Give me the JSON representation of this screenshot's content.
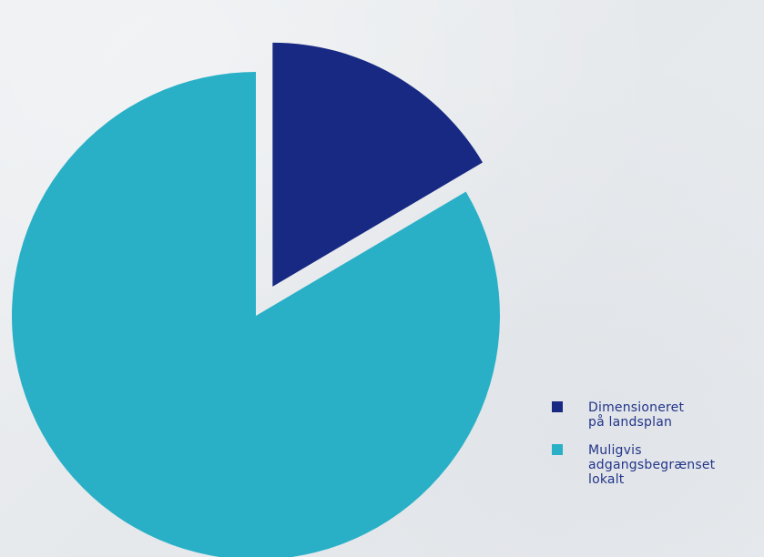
{
  "chart_data": {
    "type": "pie",
    "title": "",
    "start_angle_deg": 0,
    "direction": "clockwise",
    "slices": [
      {
        "label": "Dimensioneret\npå landsplan",
        "value": 16.5,
        "color": "#172983",
        "exploded": true
      },
      {
        "label": "Muligvis\nadgangsbegrænset\nlokalt",
        "value": 83.5,
        "color": "#29b0c7",
        "exploded": false
      }
    ],
    "legend_position": "bottom-right"
  }
}
